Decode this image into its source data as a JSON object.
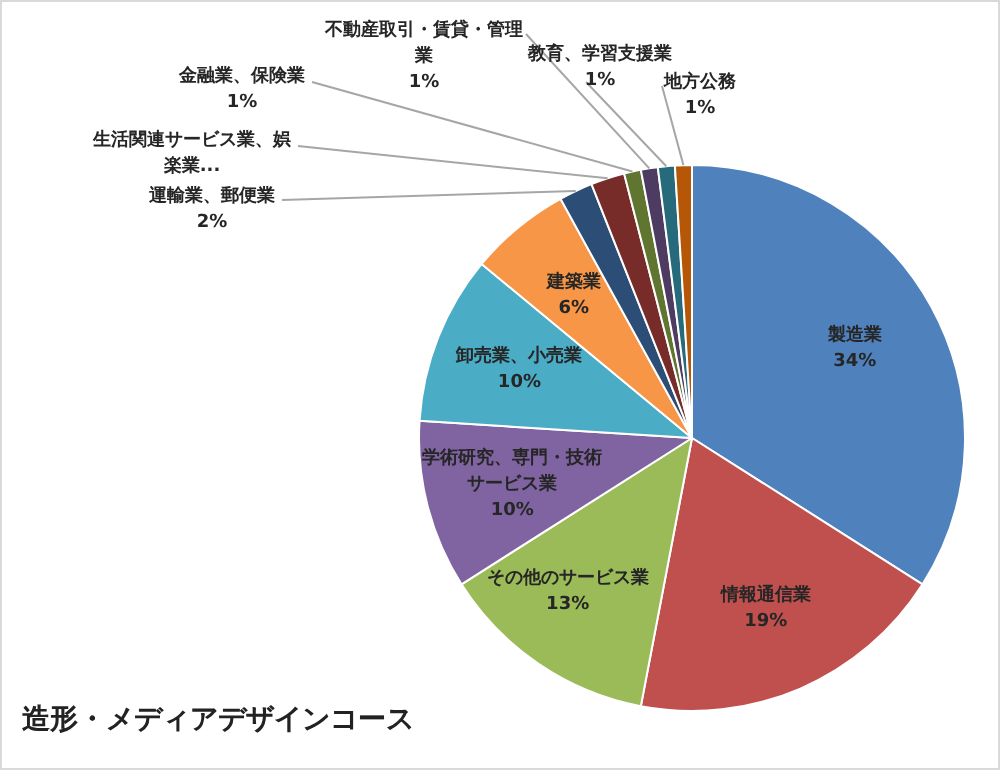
{
  "chart_data": {
    "type": "pie",
    "title": "造形・メディアデザインコース",
    "categories": [
      "製造業",
      "情報通信業",
      "その他のサービス業",
      "学術研究、専門・技術サービス業",
      "卸売業、小売業",
      "建築業",
      "運輸業、郵便業",
      "生活関連サービス業、娯楽業...",
      "金融業、保険業",
      "不動産取引・賃貸・管理業",
      "教育、学習支援業",
      "地方公務"
    ],
    "values": [
      34,
      19,
      13,
      10,
      10,
      6,
      2,
      2,
      1,
      1,
      1,
      1
    ],
    "colors": [
      "#4f81bd",
      "#c0504d",
      "#9bbb59",
      "#8064a2",
      "#4bacc6",
      "#f79646",
      "#2c4d75",
      "#772c2a",
      "#5f7530",
      "#4d3b62",
      "#276a7c",
      "#b65708"
    ],
    "value_labels": [
      "34%",
      "19%",
      "13%",
      "10%",
      "10%",
      "6%",
      "2%",
      null,
      "1%",
      "1%",
      "1%",
      "1%"
    ],
    "legend": false
  }
}
